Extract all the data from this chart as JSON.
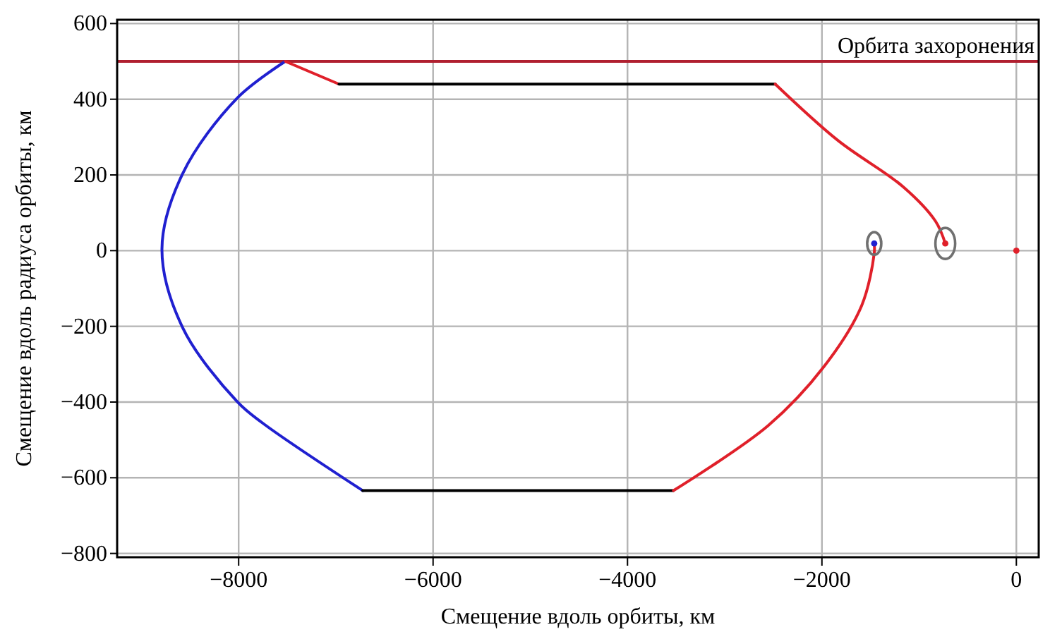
{
  "chart_data": {
    "type": "line",
    "xlabel": "Смещение вдоль орбиты, км",
    "ylabel": "Смещение вдоль радиуса орбиты, км",
    "xlim": [
      -9250,
      230
    ],
    "ylim": [
      -810,
      610
    ],
    "xticks": [
      -8000,
      -6000,
      -4000,
      -2000,
      0
    ],
    "yticks": [
      -800,
      -600,
      -400,
      -200,
      0,
      200,
      400,
      600
    ],
    "grid": true,
    "marker": "none",
    "line_style": "solid",
    "ref_lines": [
      {
        "axis": "y",
        "value": 500,
        "label": "Орбита захоронения",
        "color": "#b02030"
      }
    ],
    "series": [
      {
        "color": "#2020d0",
        "x": [
          -7520,
          -8015,
          -8573,
          -8789,
          -8573,
          -8015,
          -7756,
          -6724
        ],
        "values": [
          500,
          403,
          205,
          4,
          -205,
          -399,
          -455,
          -634
        ]
      },
      {
        "color": "#e0202a",
        "x": [
          -7520,
          -6968
        ],
        "values": [
          500,
          440
        ]
      },
      {
        "color": "#000000",
        "x": [
          -6968,
          -2480
        ],
        "values": [
          440,
          440
        ]
      },
      {
        "color": "#e0202a",
        "x": [
          -2480,
          -1835,
          -1161,
          -832,
          -731
        ],
        "values": [
          440,
          291,
          168,
          78,
          19
        ]
      },
      {
        "color": "#000000",
        "x": [
          -6724,
          -3527
        ],
        "values": [
          -634,
          -634
        ]
      },
      {
        "color": "#e0202a",
        "x": [
          -3527,
          -2552,
          -1978,
          -1591,
          -1462,
          -1462
        ],
        "values": [
          -634,
          -462,
          -306,
          -145,
          -7,
          19
        ]
      },
      {
        "type": "scatter",
        "marker": "circle",
        "color": "#2020d0",
        "x": [
          -1462
        ],
        "values": [
          19
        ]
      },
      {
        "type": "scatter",
        "marker": "circle",
        "color": "#e0202a",
        "x": [
          -731,
          0
        ],
        "values": [
          19,
          0
        ]
      }
    ]
  }
}
